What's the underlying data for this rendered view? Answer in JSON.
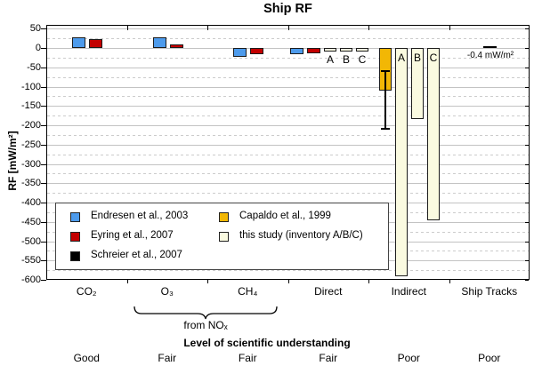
{
  "chart": {
    "title": "Ship RF",
    "y_label": "RF [mW/m²]",
    "y_axis": {
      "max": 60,
      "min": -600,
      "label_top": 50,
      "label_step": 50,
      "label_bottom": -600,
      "minor_step": 25
    },
    "x_axis": {
      "group_label": "from NOₓ"
    }
  },
  "chart_data": {
    "type": "bar",
    "unit": "mW/m²",
    "ylim": [
      -600,
      60
    ],
    "categories": [
      "CO₂",
      "O₃",
      "CH₄",
      "Direct",
      "Indirect",
      "Ship Tracks"
    ],
    "groups": [
      {
        "category": "CO₂",
        "bars": [
          {
            "study": "endresen",
            "value": 28
          },
          {
            "study": "eyring",
            "value": 24
          }
        ]
      },
      {
        "category": "O₃",
        "bars": [
          {
            "study": "endresen",
            "value": 28
          },
          {
            "study": "eyring",
            "value": 9
          }
        ]
      },
      {
        "category": "CH₄",
        "bars": [
          {
            "study": "endresen",
            "value": -23
          },
          {
            "study": "eyring",
            "value": -17
          }
        ]
      },
      {
        "category": "Direct",
        "bars": [
          {
            "study": "endresen",
            "value": -16
          },
          {
            "study": "eyring",
            "value": -14
          },
          {
            "study": "this_study",
            "value": -10,
            "label": "A",
            "label_pos": "below"
          },
          {
            "study": "this_study",
            "value": -10,
            "label": "B",
            "label_pos": "below"
          },
          {
            "study": "this_study",
            "value": -10,
            "label": "C",
            "label_pos": "below"
          }
        ]
      },
      {
        "category": "Indirect",
        "bars": [
          {
            "study": "capaldo",
            "value": -110,
            "error_range": [
              -210,
              -60
            ]
          },
          {
            "study": "this_study",
            "value": -590,
            "label": "A",
            "label_pos": "inside"
          },
          {
            "study": "this_study",
            "value": -185,
            "label": "B",
            "label_pos": "inside"
          },
          {
            "study": "this_study",
            "value": -445,
            "label": "C",
            "label_pos": "inside"
          }
        ]
      },
      {
        "category": "Ship Tracks",
        "bars": [
          {
            "study": "schreier",
            "value": -0.4,
            "style": "dash",
            "annotation": "-0.4 mW/m²"
          }
        ]
      }
    ]
  },
  "studies": {
    "endresen": {
      "label": "Endresen et al., 2003",
      "color": "#4D9BEC"
    },
    "eyring": {
      "label": "Eyring et al., 2007",
      "color": "#C30000"
    },
    "schreier": {
      "label": "Schreier et al., 2007",
      "color": "#000000"
    },
    "capaldo": {
      "label": "Capaldo et al., 1999",
      "color": "#F2B705"
    },
    "this_study": {
      "label": "this study (inventory A/B/C)",
      "color": "#FAFAE0"
    }
  },
  "legend": {
    "columns": [
      [
        "endresen",
        "eyring",
        "schreier"
      ],
      [
        "capaldo",
        "this_study"
      ]
    ]
  },
  "understanding": {
    "title": "Level of scientific understanding",
    "values": [
      "Good",
      "Fair",
      "Fair",
      "Fair",
      "Poor",
      "Poor"
    ]
  },
  "colors": {
    "grid_major": "#c3c3c3",
    "grid_minor": "#cccccc",
    "axis": "#000000",
    "bar_border": "#1c1c1c"
  }
}
